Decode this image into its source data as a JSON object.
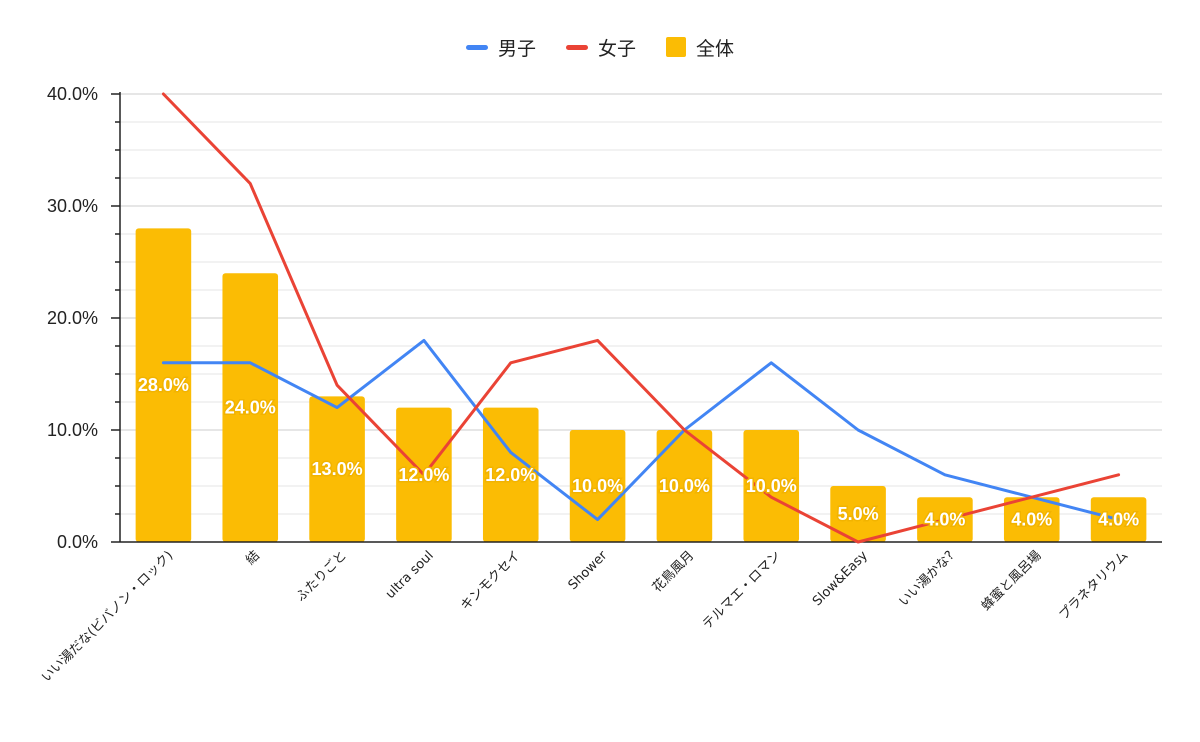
{
  "chart_data": {
    "type": "bar",
    "title": "",
    "xlabel": "",
    "ylabel": "",
    "ylim": [
      0,
      40
    ],
    "yticks": [
      "0.0%",
      "10.0%",
      "20.0%",
      "30.0%",
      "40.0%"
    ],
    "grid": true,
    "legend_position": "top-center",
    "categories": [
      "いい湯だな(ビバノン・ロック)",
      "結",
      "ふたりごと",
      "ultra soul",
      "キンモクセイ",
      "Shower",
      "花鳥風月",
      "テルマエ・ロマン",
      "Slow&Easy",
      "いい湯かな?",
      "蜂蜜と風呂場",
      "プラネタリウム"
    ],
    "series": [
      {
        "name": "男子",
        "type": "line",
        "color": "#4285f4",
        "values": [
          16,
          16,
          12,
          18,
          8,
          2,
          10,
          16,
          10,
          6,
          4,
          2
        ]
      },
      {
        "name": "女子",
        "type": "line",
        "color": "#ea4335",
        "values": [
          40,
          32,
          14,
          6,
          16,
          18,
          10,
          4,
          0,
          2,
          4,
          6
        ]
      },
      {
        "name": "全体",
        "type": "bar",
        "color": "#fbbc04",
        "values": [
          28,
          24,
          13,
          12,
          12,
          10,
          10,
          10,
          5,
          4,
          4,
          4
        ]
      }
    ],
    "data_labels": [
      "28.0%",
      "24.0%",
      "13.0%",
      "12.0%",
      "12.0%",
      "10.0%",
      "10.0%",
      "10.0%",
      "5.0%",
      "4.0%",
      "4.0%",
      "4.0%"
    ]
  }
}
